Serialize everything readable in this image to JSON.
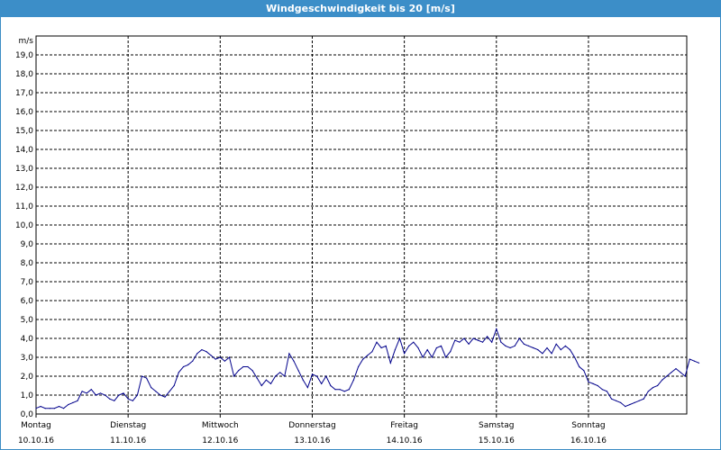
{
  "window": {
    "title": "Windgeschwindigkeit bis 20 [m/s]"
  },
  "colors": {
    "title_bar": "#3c8ec8",
    "series": "#00008b",
    "grid": "#000000"
  },
  "chart_data": {
    "type": "line",
    "title": "Windgeschwindigkeit bis 20 [m/s]",
    "ylabel": "m/s",
    "ylim": [
      0,
      20
    ],
    "xlim": [
      0,
      7
    ],
    "grid": true,
    "y_ticks": [
      "0,0",
      "1,0",
      "2,0",
      "3,0",
      "4,0",
      "5,0",
      "6,0",
      "7,0",
      "8,0",
      "9,0",
      "10,0",
      "11,0",
      "12,0",
      "13,0",
      "14,0",
      "15,0",
      "16,0",
      "17,0",
      "18,0",
      "19,0"
    ],
    "day_labels": [
      {
        "day": "Montag",
        "date": "10.10.16"
      },
      {
        "day": "Dienstag",
        "date": "11.10.16"
      },
      {
        "day": "Mittwoch",
        "date": "12.10.16"
      },
      {
        "day": "Donnerstag",
        "date": "13.10.16"
      },
      {
        "day": "Freitag",
        "date": "14.10.16"
      },
      {
        "day": "Samstag",
        "date": "15.10.16"
      },
      {
        "day": "Sonntag",
        "date": "16.10.16"
      }
    ],
    "series": [
      {
        "values": [
          [
            0.0,
            0.3
          ],
          [
            0.05,
            0.4
          ],
          [
            0.1,
            0.3
          ],
          [
            0.15,
            0.3
          ],
          [
            0.2,
            0.3
          ],
          [
            0.25,
            0.4
          ],
          [
            0.3,
            0.3
          ],
          [
            0.35,
            0.5
          ],
          [
            0.4,
            0.6
          ],
          [
            0.45,
            0.7
          ],
          [
            0.5,
            1.2
          ],
          [
            0.55,
            1.1
          ],
          [
            0.6,
            1.3
          ],
          [
            0.65,
            1.0
          ],
          [
            0.7,
            1.1
          ],
          [
            0.75,
            1.0
          ],
          [
            0.8,
            0.8
          ],
          [
            0.85,
            0.7
          ],
          [
            0.9,
            1.0
          ],
          [
            0.95,
            1.1
          ],
          [
            1.0,
            0.8
          ],
          [
            1.05,
            0.7
          ],
          [
            1.1,
            1.0
          ],
          [
            1.15,
            2.0
          ],
          [
            1.2,
            1.9
          ],
          [
            1.25,
            1.4
          ],
          [
            1.3,
            1.2
          ],
          [
            1.35,
            1.0
          ],
          [
            1.4,
            0.9
          ],
          [
            1.45,
            1.2
          ],
          [
            1.5,
            1.5
          ],
          [
            1.55,
            2.2
          ],
          [
            1.6,
            2.5
          ],
          [
            1.65,
            2.6
          ],
          [
            1.7,
            2.8
          ],
          [
            1.75,
            3.2
          ],
          [
            1.8,
            3.4
          ],
          [
            1.85,
            3.3
          ],
          [
            1.9,
            3.1
          ],
          [
            1.95,
            2.9
          ],
          [
            2.0,
            3.0
          ],
          [
            2.05,
            2.8
          ],
          [
            2.1,
            3.0
          ],
          [
            2.15,
            2.0
          ],
          [
            2.2,
            2.3
          ],
          [
            2.25,
            2.5
          ],
          [
            2.3,
            2.5
          ],
          [
            2.35,
            2.3
          ],
          [
            2.4,
            1.9
          ],
          [
            2.45,
            1.5
          ],
          [
            2.5,
            1.8
          ],
          [
            2.55,
            1.6
          ],
          [
            2.6,
            2.0
          ],
          [
            2.65,
            2.2
          ],
          [
            2.7,
            2.0
          ],
          [
            2.75,
            3.2
          ],
          [
            2.8,
            2.8
          ],
          [
            2.85,
            2.3
          ],
          [
            2.9,
            1.8
          ],
          [
            2.95,
            1.4
          ],
          [
            3.0,
            2.1
          ],
          [
            3.05,
            2.0
          ],
          [
            3.1,
            1.6
          ],
          [
            3.15,
            2.0
          ],
          [
            3.2,
            1.5
          ],
          [
            3.25,
            1.3
          ],
          [
            3.3,
            1.3
          ],
          [
            3.35,
            1.2
          ],
          [
            3.4,
            1.3
          ],
          [
            3.45,
            1.8
          ],
          [
            3.5,
            2.5
          ],
          [
            3.55,
            2.9
          ],
          [
            3.6,
            3.1
          ],
          [
            3.65,
            3.3
          ],
          [
            3.7,
            3.8
          ],
          [
            3.75,
            3.5
          ],
          [
            3.8,
            3.6
          ],
          [
            3.85,
            2.7
          ],
          [
            3.9,
            3.4
          ],
          [
            3.95,
            4.0
          ],
          [
            4.0,
            3.2
          ],
          [
            4.05,
            3.6
          ],
          [
            4.1,
            3.8
          ],
          [
            4.15,
            3.5
          ],
          [
            4.2,
            3.0
          ],
          [
            4.25,
            3.4
          ],
          [
            4.3,
            3.0
          ],
          [
            4.35,
            3.5
          ],
          [
            4.4,
            3.6
          ],
          [
            4.45,
            3.0
          ],
          [
            4.5,
            3.3
          ],
          [
            4.55,
            3.9
          ],
          [
            4.6,
            3.8
          ],
          [
            4.65,
            4.0
          ],
          [
            4.7,
            3.7
          ],
          [
            4.75,
            4.0
          ],
          [
            4.8,
            3.9
          ],
          [
            4.85,
            3.8
          ],
          [
            4.9,
            4.1
          ],
          [
            4.95,
            3.8
          ],
          [
            5.0,
            4.5
          ],
          [
            5.05,
            3.8
          ],
          [
            5.1,
            3.6
          ],
          [
            5.15,
            3.5
          ],
          [
            5.2,
            3.6
          ],
          [
            5.25,
            4.0
          ],
          [
            5.3,
            3.7
          ],
          [
            5.35,
            3.6
          ],
          [
            5.4,
            3.5
          ],
          [
            5.45,
            3.4
          ],
          [
            5.5,
            3.2
          ],
          [
            5.55,
            3.5
          ],
          [
            5.6,
            3.2
          ],
          [
            5.65,
            3.7
          ],
          [
            5.7,
            3.4
          ],
          [
            5.75,
            3.6
          ],
          [
            5.8,
            3.4
          ],
          [
            5.85,
            3.0
          ],
          [
            5.9,
            2.5
          ],
          [
            5.95,
            2.3
          ],
          [
            6.0,
            1.7
          ],
          [
            6.05,
            1.6
          ],
          [
            6.1,
            1.5
          ],
          [
            6.15,
            1.3
          ],
          [
            6.2,
            1.2
          ],
          [
            6.25,
            0.8
          ],
          [
            6.3,
            0.7
          ],
          [
            6.35,
            0.6
          ],
          [
            6.4,
            0.4
          ],
          [
            6.45,
            0.5
          ],
          [
            6.5,
            0.6
          ],
          [
            6.55,
            0.7
          ],
          [
            6.6,
            0.8
          ],
          [
            6.65,
            1.2
          ],
          [
            6.7,
            1.4
          ],
          [
            6.75,
            1.5
          ],
          [
            6.8,
            1.8
          ],
          [
            6.85,
            2.0
          ],
          [
            6.9,
            2.2
          ],
          [
            6.95,
            2.4
          ],
          [
            7.0,
            2.2
          ],
          [
            7.05,
            2.0
          ],
          [
            7.1,
            2.9
          ],
          [
            7.15,
            2.8
          ],
          [
            7.2,
            2.7
          ]
        ]
      }
    ]
  }
}
